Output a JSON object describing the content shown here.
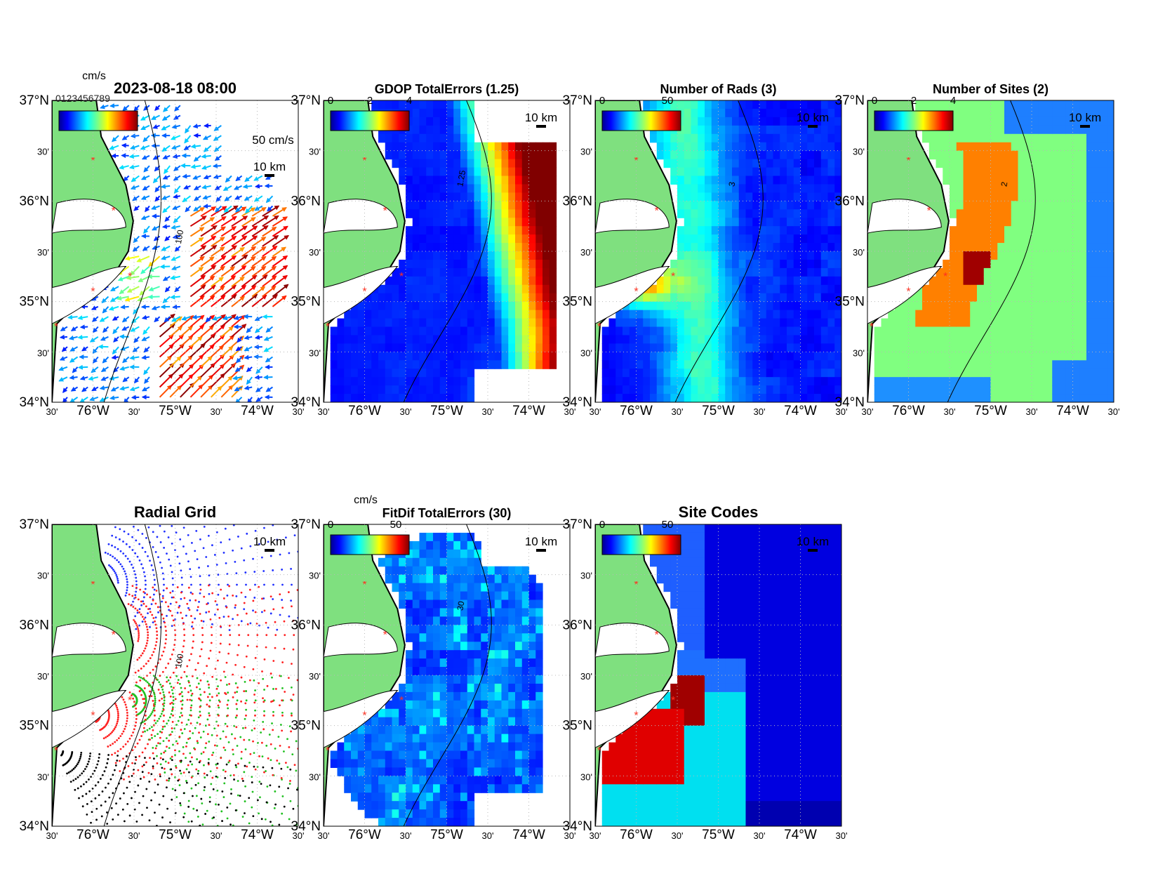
{
  "figure": {
    "panels": [
      {
        "id": "currents",
        "title": "2023-08-18 08:00",
        "field": "currents",
        "cbar_unit": "cm/s",
        "cbar_ticks": [],
        "contour_label": "100",
        "scale_label": "50 cm/s",
        "km_label": "10 km",
        "stamp": "0123456789"
      },
      {
        "id": "gdop",
        "title": "GDOP TotalErrors (1.25)",
        "field": "gdop",
        "cbar_unit": "",
        "cbar_ticks": [
          "0",
          "2",
          "4"
        ],
        "contour_label": "1.25",
        "scale_label": "",
        "km_label": "10 km",
        "stamp": ""
      },
      {
        "id": "nrads",
        "title": "Number of Rads (3)",
        "field": "rads",
        "cbar_unit": "",
        "cbar_ticks": [
          "0",
          "50"
        ],
        "contour_label": "3",
        "scale_label": "",
        "km_label": "10 km",
        "stamp": ""
      },
      {
        "id": "nsites",
        "title": "Number of Sites (2)",
        "field": "sites",
        "cbar_unit": "",
        "cbar_ticks": [
          "0",
          "2",
          "4"
        ],
        "contour_label": "2",
        "scale_label": "",
        "km_label": "10 km",
        "stamp": ""
      },
      {
        "id": "radial",
        "title": "Radial Grid",
        "field": "radial",
        "cbar_unit": "",
        "cbar_ticks": [],
        "contour_label": "100",
        "scale_label": "",
        "km_label": "10 km",
        "stamp": ""
      },
      {
        "id": "fitdif",
        "title": "FitDif TotalErrors (30)",
        "field": "fitdif",
        "cbar_unit": "cm/s",
        "cbar_ticks": [
          "0",
          "50"
        ],
        "contour_label": "30",
        "scale_label": "",
        "km_label": "10 km",
        "stamp": ""
      },
      {
        "id": "codes",
        "title": "Site Codes",
        "field": "codes",
        "cbar_unit": "",
        "cbar_ticks": [
          "0",
          "50"
        ],
        "contour_label": "",
        "scale_label": "",
        "km_label": "10 km",
        "stamp": ""
      }
    ],
    "lat_labels": [
      "37°N",
      "30'",
      "36°N",
      "30'",
      "35°N",
      "30'",
      "34°N"
    ],
    "lon_labels": [
      "30'",
      "76°W",
      "30'",
      "75°W",
      "30'",
      "74°W",
      "30'"
    ]
  },
  "colors": {
    "land": "#7fe07f",
    "coast": "#000000",
    "site": "#ff3020",
    "grid": "#b8b8b8"
  },
  "map_extent": {
    "lat": [
      34,
      37
    ],
    "lon": [
      -76.5,
      -73.5
    ]
  },
  "sites": [
    {
      "lon": -76.0,
      "lat": 36.4
    },
    {
      "lon": -75.75,
      "lat": 35.9
    },
    {
      "lon": -75.55,
      "lat": 35.25
    },
    {
      "lon": -76.0,
      "lat": 35.1
    },
    {
      "lon": -76.45,
      "lat": 34.75
    }
  ]
}
